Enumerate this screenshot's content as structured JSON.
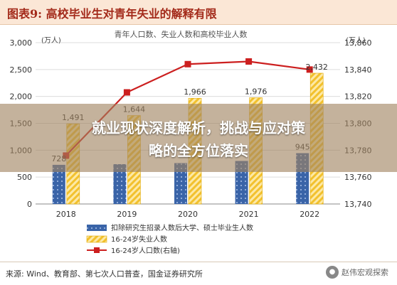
{
  "header": {
    "title": "图表9: 高校毕业生对青年失业的解释有限"
  },
  "banner": {
    "line1": "就业现状深度解析，挑战与应对策",
    "line2": "略的全方位落实"
  },
  "footer": {
    "source": "来源: Wind、教育部、第七次人口普查，国金证券研究所",
    "watermark": "赵伟宏观探索"
  },
  "chart_data": {
    "type": "bar",
    "title": "青年人口数、失业人数和高校毕业人数",
    "left_unit": "(万人)",
    "right_unit": "(万人)",
    "categories": [
      "2018",
      "2019",
      "2020",
      "2021",
      "2022"
    ],
    "left_ylim": [
      0,
      3000
    ],
    "left_ticks": [
      "0",
      "500",
      "1,000",
      "1,500",
      "2,000",
      "2,500",
      "3,000"
    ],
    "right_ylim": [
      13740,
      13860
    ],
    "right_ticks": [
      "13,740",
      "13,760",
      "13,780",
      "13,800",
      "13,820",
      "13,840",
      "13,860"
    ],
    "series": [
      {
        "name": "扣除研究生招录人数后大学、硕士毕业生人数",
        "values": [
          728,
          740,
          760,
          800,
          945
        ],
        "labels": [
          "728",
          "",
          "",
          "",
          "945"
        ],
        "color": "#3a64a8"
      },
      {
        "name": "16-24岁失业人数",
        "values": [
          1491,
          1644,
          1966,
          1976,
          2432
        ],
        "labels": [
          "1,491",
          "1,644",
          "1,966",
          "1,976",
          "2,432"
        ],
        "color": "#f2c12e"
      },
      {
        "name": "16-24岁人口数(右轴)",
        "values": [
          13776,
          13823,
          13844,
          13846,
          13840
        ],
        "axis": "right",
        "color": "#cc1f1f"
      }
    ],
    "grid": true,
    "legend_position": "bottom"
  }
}
